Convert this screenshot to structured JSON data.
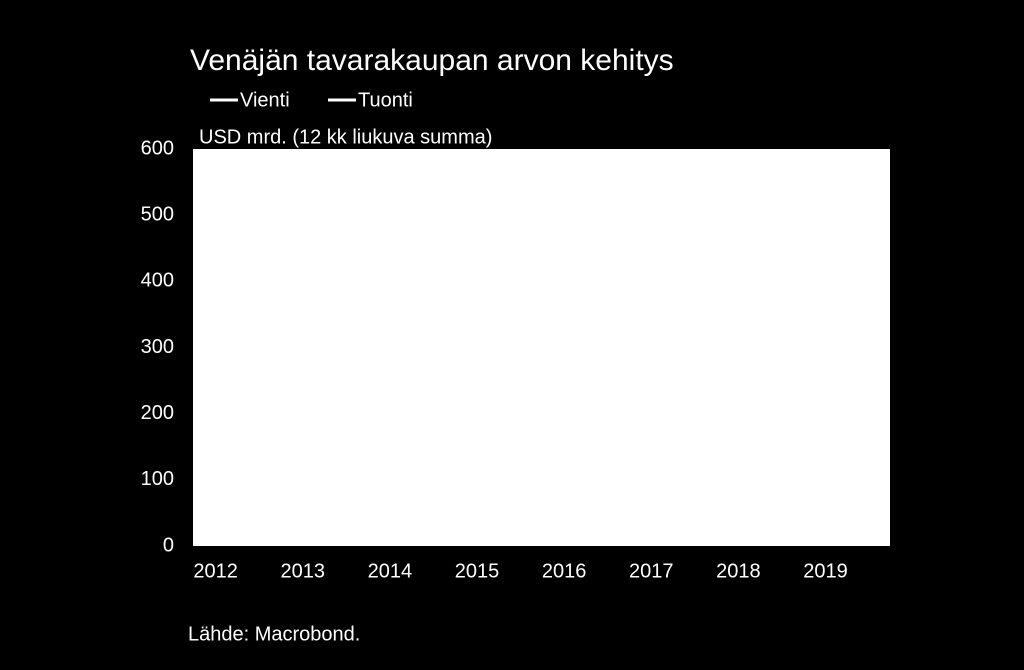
{
  "chart_data": {
    "type": "line",
    "title": "Venäjän tavarakaupan arvon kehitys",
    "subtitle": "USD mrd. (12 kk liukuva summa)",
    "source": "Lähde: Macrobond.",
    "series": [
      {
        "name": "Vienti",
        "color": "#ffffff"
      },
      {
        "name": "Tuonti",
        "color": "#ffffff"
      }
    ],
    "xlim": [
      2011.74,
      2019.74
    ],
    "xticks": [
      2012,
      2013,
      2014,
      2015,
      2016,
      2017,
      2018,
      2019
    ],
    "ylim": [
      0,
      600
    ],
    "yticks": [
      0,
      100,
      200,
      300,
      400,
      500,
      600
    ]
  }
}
